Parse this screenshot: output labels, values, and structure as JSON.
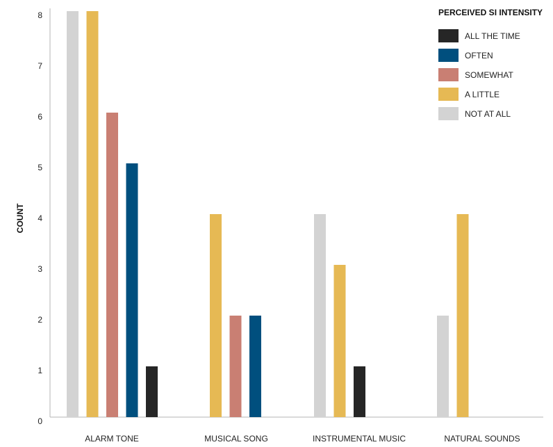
{
  "chart_data": {
    "type": "bar",
    "title": "",
    "xlabel": "",
    "ylabel": "COUNT",
    "ylim": [
      0,
      8
    ],
    "yticks": [
      0,
      1,
      2,
      3,
      4,
      5,
      6,
      7,
      8
    ],
    "categories": [
      "ALARM TONE",
      "MUSICAL SONG",
      "INSTRUMENTAL MUSIC",
      "NATURAL SOUNDS"
    ],
    "legend": {
      "title": "PERCEIVED SI INTENSITY",
      "position": "top-right"
    },
    "series": [
      {
        "name": "NOT AT ALL",
        "color": "#d3d3d3",
        "values": [
          8,
          0,
          4,
          2
        ]
      },
      {
        "name": "A LITTLE",
        "color": "#e6b954",
        "values": [
          8,
          4,
          3,
          4
        ]
      },
      {
        "name": "SOMEWHAT",
        "color": "#c97f73",
        "values": [
          6,
          2,
          0,
          0
        ]
      },
      {
        "name": "OFTEN",
        "color": "#004f7e",
        "values": [
          5,
          2,
          0,
          0
        ]
      },
      {
        "name": "ALL THE TIME",
        "color": "#262626",
        "values": [
          1,
          0,
          1,
          0
        ]
      }
    ],
    "legend_order": [
      "ALL THE TIME",
      "OFTEN",
      "SOMEWHAT",
      "A LITTLE",
      "NOT AT ALL"
    ],
    "grid": false
  }
}
